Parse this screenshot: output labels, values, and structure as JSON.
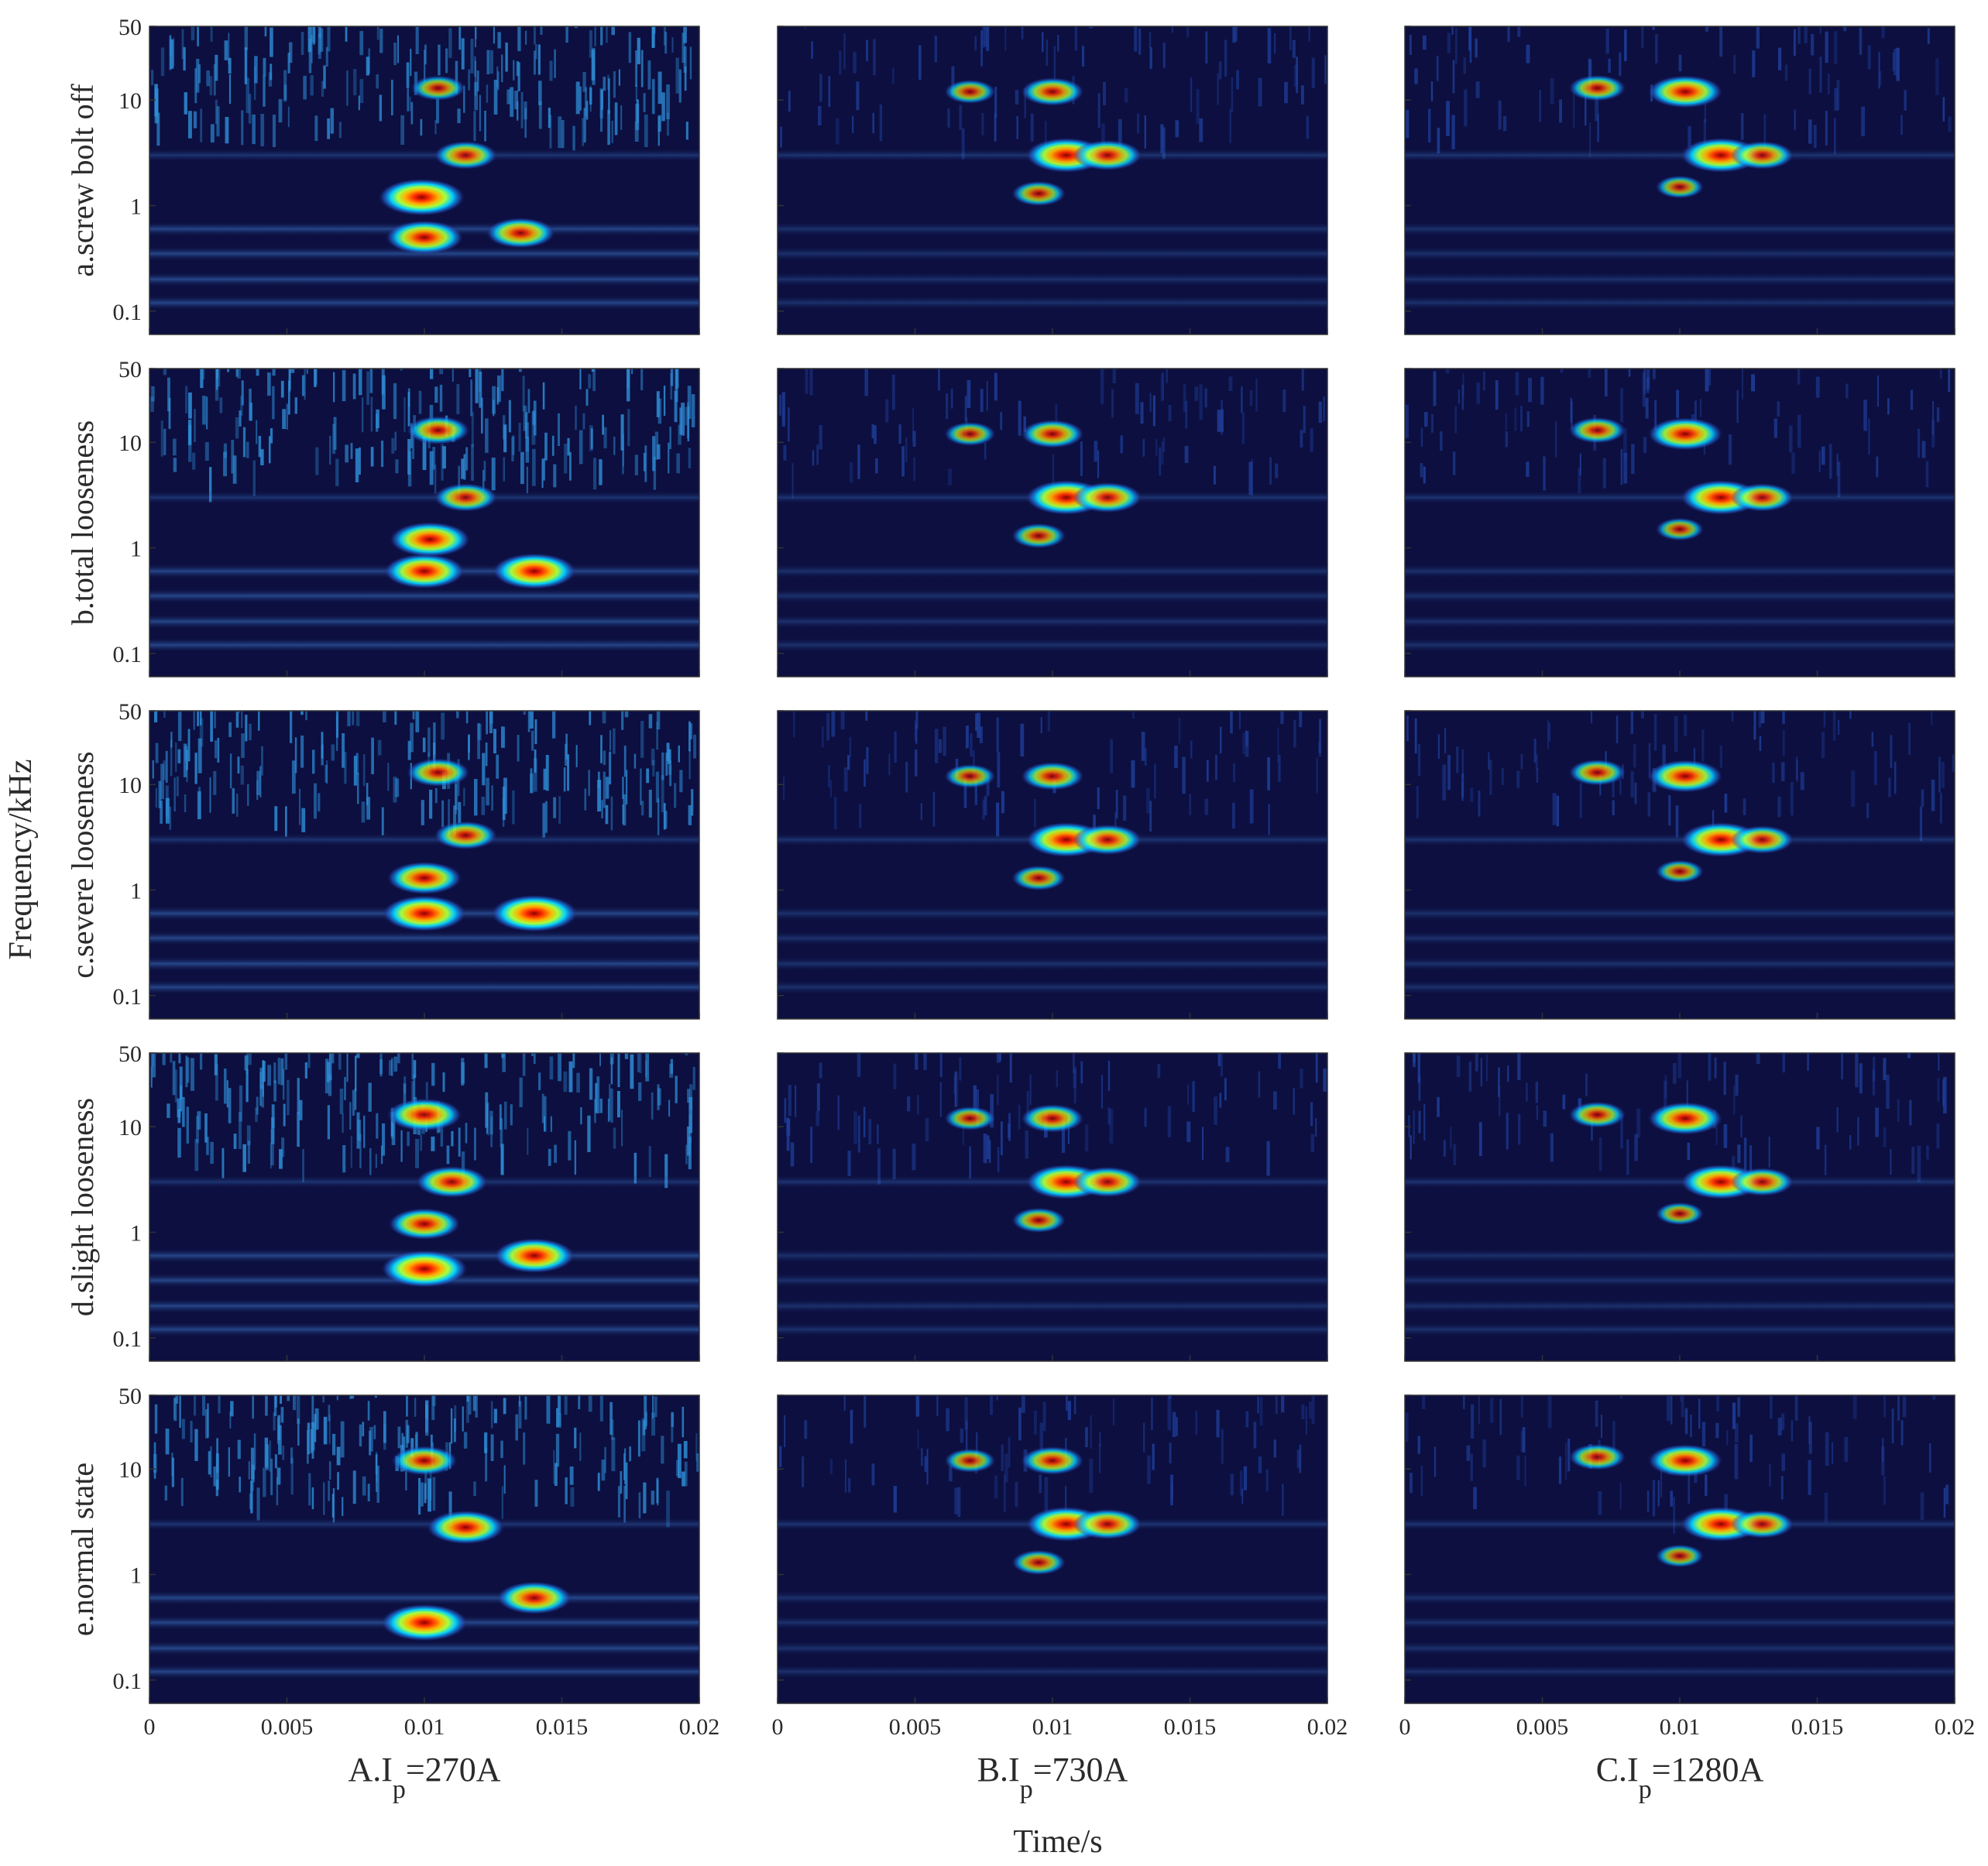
{
  "chart_data": {
    "type": "heatmap",
    "subtype": "wavelet time-frequency spectrogram grid",
    "layout": {
      "rows": 5,
      "cols": 3
    },
    "xlabel": "Time/s",
    "ylabel": "Frequency/kHz",
    "x_range": [
      0,
      0.02
    ],
    "x_ticks": [
      "0",
      "0.005",
      "0.01",
      "0.015",
      "0.02"
    ],
    "y_scale": "log",
    "y_range": [
      0.06,
      50
    ],
    "y_ticks": [
      "0.1",
      "1",
      "10",
      "50"
    ],
    "colormap": "jet",
    "row_labels": [
      "a.screw bolt off",
      "b.total looseness",
      "c.severe looseness",
      "d.slight looseness",
      "e.normal state"
    ],
    "columns": [
      {
        "prefix": "A.I",
        "subscript": "p",
        "suffix": "=270A"
      },
      {
        "prefix": "B.I",
        "subscript": "p",
        "suffix": "=730A"
      },
      {
        "prefix": "C.I",
        "subscript": "p",
        "suffix": "=1280A"
      }
    ],
    "row_blobs": [
      [
        {
          "t": 0.0099,
          "f": 1.2,
          "a": 1.0
        },
        {
          "t": 0.01,
          "f": 0.5,
          "a": 0.85
        },
        {
          "t": 0.0135,
          "f": 0.55,
          "a": 0.7
        },
        {
          "t": 0.0115,
          "f": 3.0,
          "a": 0.6
        },
        {
          "t": 0.0105,
          "f": 13,
          "a": 0.45
        }
      ],
      [
        {
          "t": 0.01,
          "f": 0.6,
          "a": 0.9
        },
        {
          "t": 0.014,
          "f": 0.6,
          "a": 0.95
        },
        {
          "t": 0.0102,
          "f": 1.2,
          "a": 0.9
        },
        {
          "t": 0.0115,
          "f": 3.0,
          "a": 0.6
        },
        {
          "t": 0.0105,
          "f": 13,
          "a": 0.6
        }
      ],
      [
        {
          "t": 0.01,
          "f": 0.6,
          "a": 0.95
        },
        {
          "t": 0.014,
          "f": 0.6,
          "a": 1.0
        },
        {
          "t": 0.01,
          "f": 1.3,
          "a": 0.8
        },
        {
          "t": 0.0115,
          "f": 3.3,
          "a": 0.6
        },
        {
          "t": 0.0105,
          "f": 13,
          "a": 0.6
        }
      ],
      [
        {
          "t": 0.01,
          "f": 0.45,
          "a": 1.0
        },
        {
          "t": 0.014,
          "f": 0.6,
          "a": 0.9
        },
        {
          "t": 0.01,
          "f": 1.2,
          "a": 0.75
        },
        {
          "t": 0.011,
          "f": 3.0,
          "a": 0.75
        },
        {
          "t": 0.01,
          "f": 13,
          "a": 0.8
        }
      ],
      [
        {
          "t": 0.01,
          "f": 0.35,
          "a": 1.0
        },
        {
          "t": 0.014,
          "f": 0.6,
          "a": 0.8
        },
        {
          "t": 0.0115,
          "f": 2.8,
          "a": 0.85
        },
        {
          "t": 0.01,
          "f": 12,
          "a": 0.65
        }
      ]
    ],
    "col_blobs": [
      [],
      [
        {
          "t": 0.0105,
          "f": 3.0,
          "a": 0.9
        },
        {
          "t": 0.012,
          "f": 3.0,
          "a": 0.7
        },
        {
          "t": 0.01,
          "f": 12,
          "a": 0.6
        },
        {
          "t": 0.007,
          "f": 12,
          "a": 0.4
        },
        {
          "t": 0.0095,
          "f": 1.3,
          "a": 0.45
        }
      ],
      [
        {
          "t": 0.0115,
          "f": 3.0,
          "a": 0.9
        },
        {
          "t": 0.013,
          "f": 3.0,
          "a": 0.6
        },
        {
          "t": 0.0102,
          "f": 12,
          "a": 0.8
        },
        {
          "t": 0.007,
          "f": 13,
          "a": 0.5
        },
        {
          "t": 0.01,
          "f": 1.5,
          "a": 0.35
        }
      ]
    ]
  }
}
